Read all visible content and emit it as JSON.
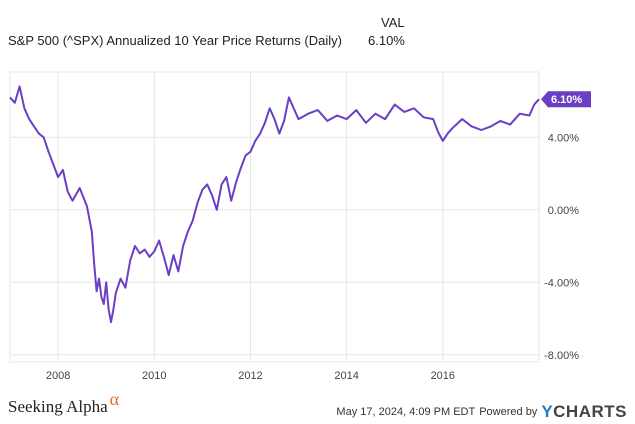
{
  "header": {
    "series_title": "S&P 500 (^SPX) Annualized 10 Year Price Returns (Daily)",
    "col_label": "VAL",
    "col_value": "6.10%"
  },
  "footer": {
    "timestamp": "May 17, 2024, 4:09 PM EDT",
    "powered_by": "Powered by",
    "ycharts_y": "Y",
    "ycharts_rest": "CHARTS",
    "brand_name": "Seeking Alpha",
    "brand_alpha": "α"
  },
  "colors": {
    "line": "#6a3fc4",
    "badge": "#6a3fc4",
    "grid": "#e6e6e6"
  },
  "chart_data": {
    "type": "line",
    "title": "S&P 500 (^SPX) Annualized 10 Year Price Returns (Daily)",
    "series": [
      {
        "name": "S&P 500 (^SPX) Annualized 10 Year Price Returns (Daily)",
        "x": [
          2007.0,
          2007.1,
          2007.2,
          2007.3,
          2007.4,
          2007.5,
          2007.6,
          2007.7,
          2007.8,
          2007.9,
          2008.0,
          2008.1,
          2008.2,
          2008.3,
          2008.45,
          2008.6,
          2008.7,
          2008.75,
          2008.8,
          2008.85,
          2008.9,
          2008.95,
          2009.0,
          2009.05,
          2009.1,
          2009.15,
          2009.2,
          2009.25,
          2009.3,
          2009.4,
          2009.5,
          2009.6,
          2009.7,
          2009.8,
          2009.9,
          2010.0,
          2010.1,
          2010.2,
          2010.3,
          2010.4,
          2010.5,
          2010.6,
          2010.7,
          2010.8,
          2010.9,
          2011.0,
          2011.1,
          2011.2,
          2011.3,
          2011.4,
          2011.5,
          2011.6,
          2011.7,
          2011.8,
          2011.9,
          2012.0,
          2012.1,
          2012.2,
          2012.3,
          2012.4,
          2012.5,
          2012.6,
          2012.7,
          2012.8,
          2012.9,
          2013.0,
          2013.2,
          2013.4,
          2013.6,
          2013.8,
          2014.0,
          2014.2,
          2014.4,
          2014.6,
          2014.8,
          2015.0,
          2015.2,
          2015.4,
          2015.6,
          2015.8,
          2015.9,
          2016.0,
          2016.1,
          2016.2,
          2016.4,
          2016.6,
          2016.8,
          2017.0,
          2017.2,
          2017.4,
          2017.6,
          2017.8,
          2017.9,
          2018.0
        ],
        "values": [
          6.2,
          5.9,
          6.8,
          5.6,
          5.0,
          4.6,
          4.2,
          4.0,
          3.2,
          2.5,
          1.8,
          2.2,
          1.0,
          0.5,
          1.2,
          0.2,
          -1.2,
          -3.0,
          -4.5,
          -3.8,
          -4.8,
          -5.2,
          -4.0,
          -5.5,
          -6.2,
          -5.5,
          -4.6,
          -4.2,
          -3.8,
          -4.3,
          -2.8,
          -2.0,
          -2.4,
          -2.2,
          -2.6,
          -2.3,
          -1.7,
          -2.6,
          -3.6,
          -2.5,
          -3.4,
          -2.0,
          -1.2,
          -0.6,
          0.4,
          1.1,
          1.4,
          0.8,
          0.0,
          1.4,
          1.8,
          0.5,
          1.5,
          2.3,
          3.0,
          3.2,
          3.8,
          4.2,
          4.8,
          5.6,
          5.0,
          4.2,
          4.9,
          6.2,
          5.6,
          5.0,
          5.3,
          5.5,
          4.9,
          5.2,
          5.0,
          5.5,
          4.8,
          5.3,
          5.0,
          5.8,
          5.4,
          5.6,
          5.1,
          5.0,
          4.3,
          3.8,
          4.2,
          4.5,
          5.0,
          4.6,
          4.4,
          4.6,
          4.9,
          4.7,
          5.3,
          5.2,
          5.8,
          6.1
        ]
      }
    ],
    "xlim": [
      2007.0,
      2018.0
    ],
    "ylim": [
      -8.4,
      7.6
    ],
    "x_ticks": [
      2008,
      2010,
      2012,
      2014,
      2016
    ],
    "x_tick_labels": [
      "2008",
      "2010",
      "2012",
      "2014",
      "2016"
    ],
    "y_ticks": [
      4.0,
      0.0,
      -4.0,
      -8.0
    ],
    "y_tick_labels": [
      "4.00%",
      "0.00%",
      "-4.00%",
      "-8.00%"
    ],
    "last_value_label": "6.10%",
    "grid": true,
    "legend": "top"
  }
}
